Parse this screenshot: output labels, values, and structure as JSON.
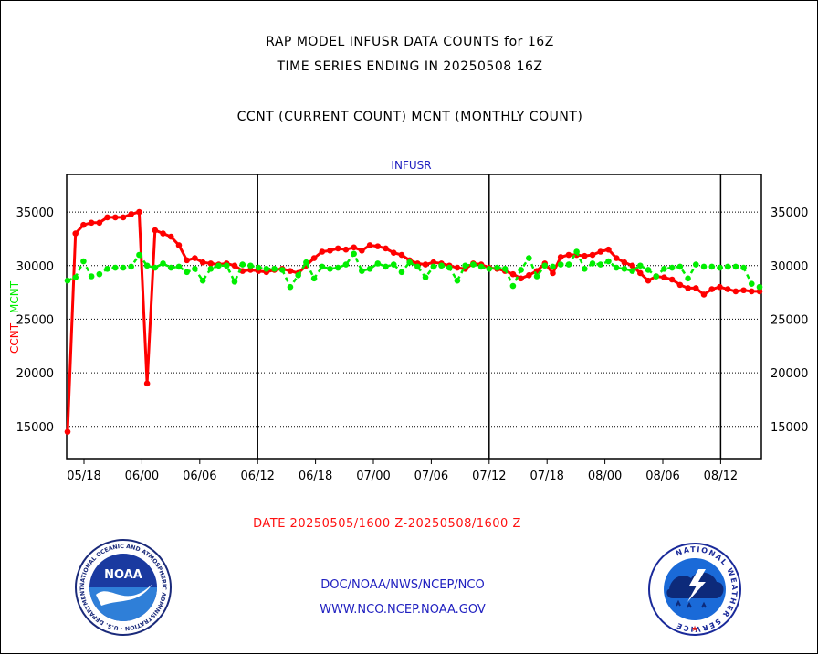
{
  "header": {
    "title_line1": "RAP MODEL INFUSR DATA COUNTS for 16Z",
    "title_line2": "TIME SERIES ENDING IN 20250508 16Z",
    "subtitle": "CCNT (CURRENT COUNT) MCNT (MONTHLY COUNT)"
  },
  "footer": {
    "date_range": "DATE 20250505/1600 Z-20250508/1600 Z",
    "org_path": "DOC/NOAA/NWS/NCEP/NCO",
    "website": "WWW.NCO.NCEP.NOAA.GOV"
  },
  "logos": {
    "noaa_text": "NOAA",
    "noaa_ring_text": "NATIONAL OCEANIC AND ATMOSPHERIC ADMINISTRATION · U.S. DEPARTMENT OF COMMERCE ·",
    "nws_ring_text": "NATIONAL WEATHER SERVICE"
  },
  "chart_data": {
    "type": "line",
    "title": "INFUSR",
    "ylabel_ccnt": "CCNT",
    "ylabel_mcnt": "MCNT",
    "ylim": [
      12000,
      38500
    ],
    "yticks": [
      15000,
      20000,
      25000,
      30000,
      35000
    ],
    "ytick_labels": [
      "15000",
      "20000",
      "25000",
      "30000",
      "35000"
    ],
    "xtick_labels": [
      "05/18",
      "06/00",
      "06/06",
      "06/12",
      "06/18",
      "07/00",
      "07/06",
      "07/12",
      "07/18",
      "08/00",
      "08/06",
      "08/12"
    ],
    "colors": {
      "ccnt": "#ff0000",
      "mcnt": "#00ee00",
      "grid": "#000000",
      "frame": "#000000"
    },
    "series": [
      {
        "name": "CCNT",
        "color": "#ff0000",
        "values": [
          14500,
          33000,
          33800,
          34000,
          34000,
          34500,
          34500,
          34500,
          34800,
          35000,
          19000,
          33300,
          33000,
          32700,
          31900,
          30500,
          30700,
          30300,
          30200,
          30100,
          30200,
          30000,
          29500,
          29600,
          29500,
          29400,
          29600,
          29700,
          29500,
          29300,
          30000,
          30700,
          31300,
          31400,
          31600,
          31500,
          31700,
          31400,
          31900,
          31800,
          31600,
          31200,
          31000,
          30500,
          30200,
          30100,
          30300,
          30200,
          30000,
          29800,
          29700,
          30200,
          30100,
          29800,
          29700,
          29500,
          29200,
          28800,
          29100,
          29500,
          30200,
          29300,
          30800,
          31000,
          31000,
          30900,
          31000,
          31300,
          31500,
          30700,
          30300,
          30000,
          29300,
          28600,
          29000,
          28900,
          28700,
          28200,
          27900,
          27900,
          27300,
          27800,
          28000,
          27800,
          27600,
          27700,
          27600,
          27600
        ]
      },
      {
        "name": "MCNT",
        "color": "#00ee00",
        "values": [
          28600,
          28900,
          30400,
          29000,
          29200,
          29700,
          29800,
          29800,
          29900,
          31000,
          30000,
          29800,
          30200,
          29800,
          29900,
          29400,
          29700,
          28600,
          29700,
          30000,
          30000,
          28500,
          30100,
          30000,
          29800,
          29700,
          29700,
          29600,
          28000,
          29100,
          30300,
          28800,
          29900,
          29700,
          29800,
          30100,
          31100,
          29500,
          29700,
          30200,
          29900,
          30100,
          29400,
          30300,
          29900,
          28900,
          29900,
          30000,
          29800,
          28600,
          30000,
          30100,
          29900,
          29700,
          29800,
          29700,
          28100,
          29600,
          30700,
          29000,
          30000,
          29900,
          30100,
          30100,
          31300,
          29700,
          30200,
          30100,
          30400,
          29800,
          29700,
          29500,
          30000,
          29600,
          29000,
          29700,
          29800,
          29900,
          28800,
          30100,
          29900,
          29900,
          29800,
          29900,
          29900,
          29800,
          28300,
          28000
        ]
      }
    ]
  }
}
